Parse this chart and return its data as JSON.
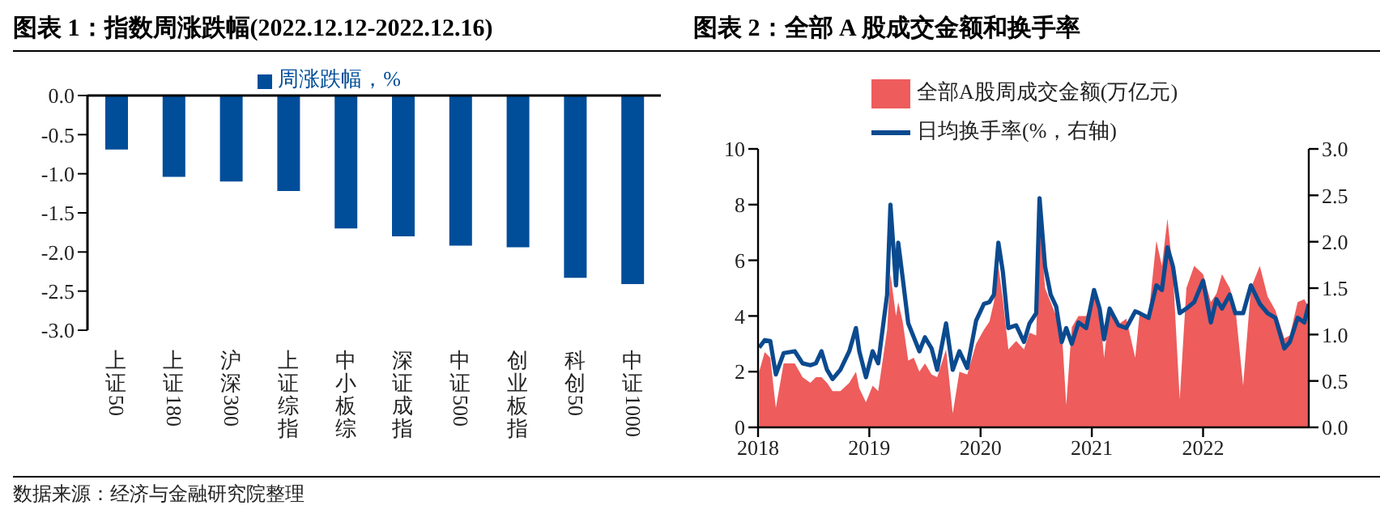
{
  "chart_data": [
    {
      "type": "bar",
      "title": "图表 1：指数周涨跌幅(2022.12.12-2022.12.16)",
      "categories": [
        "上证50",
        "上证180",
        "沪深300",
        "上证综指",
        "中小板综",
        "深证成指",
        "中证500",
        "创业板指",
        "科创50",
        "中证1000"
      ],
      "series": [
        {
          "name": "周涨跌幅，%",
          "color": "#004d99",
          "values": [
            -0.69,
            -1.04,
            -1.1,
            -1.22,
            -1.7,
            -1.8,
            -1.92,
            -1.94,
            -2.33,
            -2.41
          ]
        }
      ],
      "ylim": [
        -3,
        0
      ],
      "yticks": [
        {
          "value": 0,
          "label": "0.0"
        },
        {
          "value": -0.5,
          "label": "-0.5"
        },
        {
          "value": -1,
          "label": "-1.0"
        },
        {
          "value": -1.5,
          "label": "-1.5"
        },
        {
          "value": -2,
          "label": "-2.0"
        },
        {
          "value": -2.5,
          "label": "-2.5"
        },
        {
          "value": -3,
          "label": "-3.0"
        }
      ],
      "legend": "top",
      "grid": false,
      "annotations": [
        "数据来源：经济与金融研究院整理"
      ]
    },
    {
      "type": "area",
      "title": "图表 2：全部 A 股成交金额和换手率",
      "x": [
        2018.01,
        2018.06,
        2018.11,
        2018.16,
        2018.23,
        2018.33,
        2018.4,
        2018.47,
        2018.52,
        2018.57,
        2018.62,
        2018.67,
        2018.74,
        2018.82,
        2018.88,
        2018.91,
        2018.97,
        2019.03,
        2019.08,
        2019.16,
        2019.19,
        2019.24,
        2019.26,
        2019.3,
        2019.35,
        2019.4,
        2019.45,
        2019.5,
        2019.56,
        2019.61,
        2019.69,
        2019.75,
        2019.81,
        2019.88,
        2019.96,
        2020.03,
        2020.08,
        2020.12,
        2020.16,
        2020.2,
        2020.25,
        2020.32,
        2020.39,
        2020.44,
        2020.5,
        2020.53,
        2020.58,
        2020.63,
        2020.68,
        2020.73,
        2020.77,
        2020.82,
        2020.88,
        2020.95,
        2021.02,
        2021.07,
        2021.11,
        2021.16,
        2021.24,
        2021.31,
        2021.39,
        2021.43,
        2021.51,
        2021.58,
        2021.63,
        2021.68,
        2021.73,
        2021.79,
        2021.85,
        2021.92,
        2022.0,
        2022.07,
        2022.12,
        2022.17,
        2022.24,
        2022.29,
        2022.36,
        2022.43,
        2022.51,
        2022.58,
        2022.65,
        2022.73,
        2022.78,
        2022.85,
        2022.91,
        2022.95
      ],
      "series": [
        {
          "name": "全部A股周成交金额(万亿元)",
          "type": "area",
          "color": "#ee5c5c",
          "values": [
            2.0,
            2.7,
            2.5,
            0.7,
            2.3,
            2.3,
            1.8,
            1.6,
            1.8,
            1.8,
            1.6,
            1.3,
            1.3,
            1.6,
            2.0,
            1.4,
            0.9,
            1.5,
            1.3,
            3.5,
            5.5,
            4.0,
            4.5,
            3.8,
            2.4,
            2.5,
            2.0,
            2.3,
            1.9,
            1.8,
            2.8,
            0.5,
            2.0,
            1.9,
            3.0,
            3.5,
            3.8,
            4.5,
            5.8,
            4.6,
            2.8,
            3.1,
            2.8,
            3.4,
            3.3,
            7.5,
            5.0,
            4.5,
            4.0,
            3.5,
            0.8,
            3.6,
            4.0,
            4.0,
            4.8,
            4.2,
            2.5,
            4.2,
            3.7,
            3.9,
            2.5,
            4.1,
            4.0,
            6.7,
            5.8,
            7.5,
            5.5,
            1.0,
            5.0,
            5.8,
            5.5,
            4.5,
            4.8,
            5.5,
            5.0,
            4.3,
            1.5,
            5.0,
            5.8,
            4.7,
            4.2,
            3.2,
            3.3,
            4.5,
            4.6,
            4.3
          ]
        },
        {
          "name": "日均换手率(%，右轴)",
          "type": "line",
          "axis": "y2",
          "color": "#0b4a8f",
          "values": [
            0.86,
            0.94,
            0.93,
            0.57,
            0.8,
            0.82,
            0.69,
            0.67,
            0.69,
            0.82,
            0.62,
            0.52,
            0.62,
            0.82,
            1.07,
            0.82,
            0.54,
            0.82,
            0.69,
            1.43,
            2.4,
            1.53,
            1.99,
            1.61,
            1.12,
            0.97,
            0.82,
            0.97,
            0.85,
            0.62,
            1.12,
            0.62,
            0.82,
            0.64,
            1.15,
            1.33,
            1.35,
            1.43,
            1.99,
            1.68,
            1.07,
            1.1,
            0.92,
            1.12,
            1.23,
            2.47,
            1.73,
            1.43,
            1.3,
            0.92,
            1.07,
            0.9,
            1.13,
            1.07,
            1.48,
            1.28,
            0.95,
            1.28,
            1.1,
            1.07,
            1.25,
            1.23,
            1.18,
            1.53,
            1.48,
            1.94,
            1.73,
            1.23,
            1.28,
            1.35,
            1.58,
            1.13,
            1.38,
            1.28,
            1.43,
            1.23,
            1.23,
            1.53,
            1.33,
            1.23,
            1.18,
            0.85,
            0.92,
            1.18,
            1.13,
            1.33
          ]
        }
      ],
      "xlim": [
        2018,
        2022.95
      ],
      "xticks": [
        2018,
        2019,
        2020,
        2021,
        2022
      ],
      "ylim": [
        0,
        10
      ],
      "yticks": [
        0,
        2,
        4,
        6,
        8,
        10
      ],
      "y2lim": [
        0,
        3
      ],
      "y2ticks": [
        {
          "value": 0,
          "label": "0.0"
        },
        {
          "value": 0.5,
          "label": "0.5"
        },
        {
          "value": 1,
          "label": "1.0"
        },
        {
          "value": 1.5,
          "label": "1.5"
        },
        {
          "value": 2,
          "label": "2.0"
        },
        {
          "value": 2.5,
          "label": "2.5"
        },
        {
          "value": 3,
          "label": "3.0"
        }
      ],
      "legend": "top",
      "grid": false,
      "marker": "none"
    }
  ]
}
